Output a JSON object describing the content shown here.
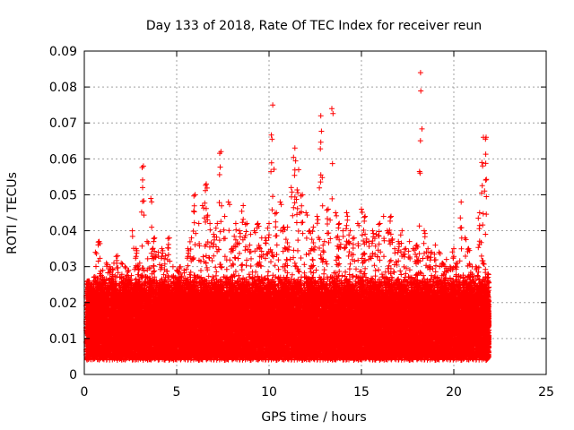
{
  "chart_data": {
    "type": "scatter",
    "title": "Day 133 of 2018, Rate Of TEC Index for receiver reun",
    "xlabel": "GPS time / hours",
    "ylabel": "ROTI / TECUs",
    "xlim": [
      0,
      25
    ],
    "ylim": [
      0,
      0.09
    ],
    "x_ticks": [
      "0",
      "5",
      "10",
      "15",
      "20",
      "25"
    ],
    "y_ticks": [
      "0",
      "0.01",
      "0.02",
      "0.03",
      "0.04",
      "0.05",
      "0.06",
      "0.07",
      "0.08",
      "0.09"
    ],
    "grid": true,
    "marker": "+",
    "color": "#ff0000",
    "series": [
      {
        "x": [
          0.1,
          0.3,
          0.5,
          0.7,
          0.9,
          1.1,
          1.3,
          1.5,
          1.7,
          1.9,
          2.1,
          2.3,
          2.5,
          2.7,
          2.9,
          3.1,
          3.3,
          3.5,
          3.7,
          3.9,
          4.1,
          4.3,
          4.5,
          4.7,
          4.9,
          5.1,
          5.3,
          5.5,
          5.7,
          5.9,
          6.1,
          6.3,
          6.5,
          6.7,
          6.9,
          7.1,
          7.3,
          7.5,
          7.7,
          7.9,
          8.1,
          8.3,
          8.5,
          8.7,
          8.9,
          9.1,
          9.3,
          9.5,
          9.7,
          9.9,
          10.1,
          10.3,
          10.5,
          10.7,
          10.9,
          11.1,
          11.3,
          11.5,
          11.7,
          11.9,
          12.1,
          12.3,
          12.5,
          12.7,
          12.9,
          13.1,
          13.3,
          13.5,
          13.7,
          13.9,
          14.1,
          14.3,
          14.5,
          14.7,
          14.9,
          15.1,
          15.3,
          15.5,
          15.7,
          15.9,
          16.1,
          16.3,
          16.5,
          16.7,
          16.9,
          17.1,
          17.3,
          17.5,
          17.7,
          17.9,
          18.1,
          18.3,
          18.5,
          18.7,
          18.9,
          19.1,
          19.3,
          19.5,
          19.7,
          19.9,
          20.1,
          20.3,
          20.5,
          20.7,
          20.9,
          21.1,
          21.3,
          21.5,
          21.7,
          21.8
        ],
        "y_max": [
          0.026,
          0.025,
          0.034,
          0.037,
          0.029,
          0.031,
          0.03,
          0.031,
          0.033,
          0.031,
          0.03,
          0.029,
          0.04,
          0.035,
          0.031,
          0.058,
          0.037,
          0.049,
          0.038,
          0.034,
          0.035,
          0.033,
          0.038,
          0.03,
          0.029,
          0.03,
          0.029,
          0.035,
          0.038,
          0.05,
          0.042,
          0.047,
          0.053,
          0.042,
          0.039,
          0.042,
          0.062,
          0.044,
          0.048,
          0.035,
          0.042,
          0.04,
          0.047,
          0.042,
          0.039,
          0.04,
          0.042,
          0.038,
          0.038,
          0.042,
          0.075,
          0.045,
          0.048,
          0.041,
          0.041,
          0.052,
          0.063,
          0.057,
          0.05,
          0.045,
          0.04,
          0.041,
          0.044,
          0.072,
          0.037,
          0.046,
          0.074,
          0.045,
          0.042,
          0.04,
          0.045,
          0.04,
          0.038,
          0.042,
          0.046,
          0.044,
          0.037,
          0.04,
          0.039,
          0.042,
          0.044,
          0.04,
          0.044,
          0.035,
          0.037,
          0.04,
          0.035,
          0.037,
          0.035,
          0.036,
          0.084,
          0.04,
          0.035,
          0.034,
          0.036,
          0.034,
          0.031,
          0.032,
          0.03,
          0.035,
          0.031,
          0.048,
          0.038,
          0.035,
          0.03,
          0.03,
          0.045,
          0.066,
          0.066,
          0.028
        ],
        "y_median": 0.012,
        "y_min": 0.004
      }
    ]
  }
}
